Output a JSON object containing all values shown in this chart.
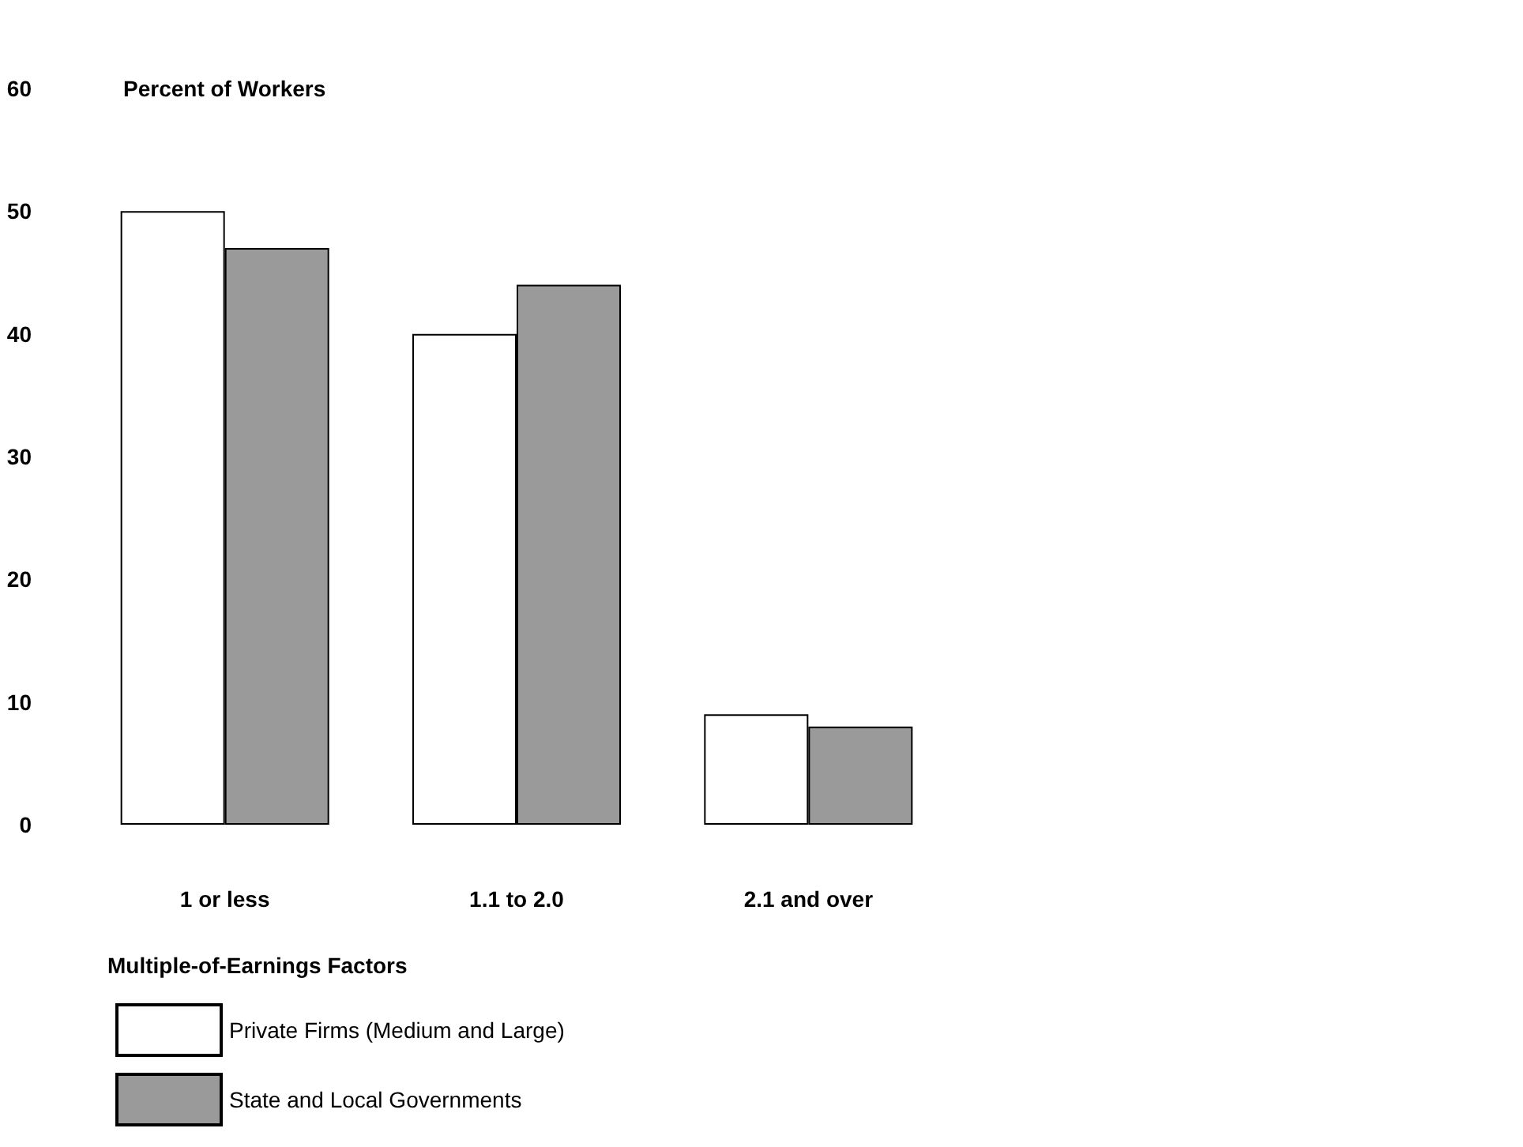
{
  "chart_data": {
    "type": "bar",
    "ylabel": "Percent of Workers",
    "xlabel": "Multiple-of-Earnings Factors",
    "categories": [
      "1 or less",
      "1.1 to 2.0",
      "2.1 and over"
    ],
    "series": [
      {
        "name": "Private Firms (Medium and Large)",
        "color": "#ffffff",
        "values": [
          50,
          40,
          9
        ]
      },
      {
        "name": "State and Local Governments",
        "color": "#9a9a9a",
        "values": [
          47,
          44,
          8
        ]
      }
    ],
    "ylim": [
      0,
      60
    ],
    "yticks": [
      0,
      10,
      20,
      30,
      40,
      50,
      60
    ],
    "grid": false,
    "legend": "bottom left"
  }
}
